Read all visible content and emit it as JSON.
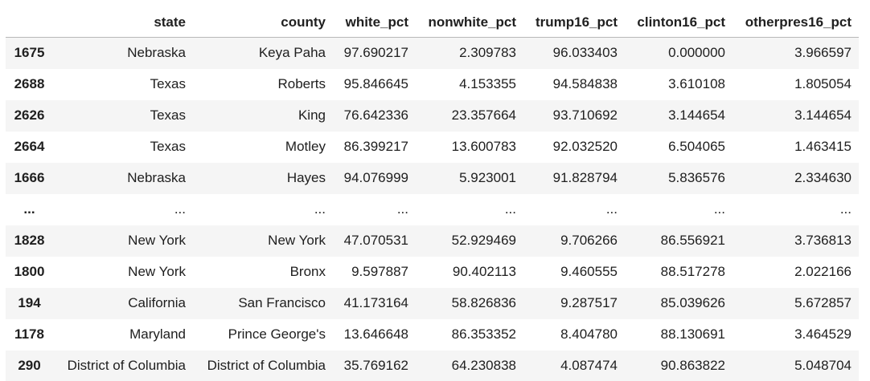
{
  "table": {
    "columns": [
      "",
      "state",
      "county",
      "white_pct",
      "nonwhite_pct",
      "trump16_pct",
      "clinton16_pct",
      "otherpres16_pct"
    ],
    "rows": [
      {
        "index": "1675",
        "cells": [
          "Nebraska",
          "Keya Paha",
          "97.690217",
          "2.309783",
          "96.033403",
          "0.000000",
          "3.966597"
        ]
      },
      {
        "index": "2688",
        "cells": [
          "Texas",
          "Roberts",
          "95.846645",
          "4.153355",
          "94.584838",
          "3.610108",
          "1.805054"
        ]
      },
      {
        "index": "2626",
        "cells": [
          "Texas",
          "King",
          "76.642336",
          "23.357664",
          "93.710692",
          "3.144654",
          "3.144654"
        ]
      },
      {
        "index": "2664",
        "cells": [
          "Texas",
          "Motley",
          "86.399217",
          "13.600783",
          "92.032520",
          "6.504065",
          "1.463415"
        ]
      },
      {
        "index": "1666",
        "cells": [
          "Nebraska",
          "Hayes",
          "94.076999",
          "5.923001",
          "91.828794",
          "5.836576",
          "2.334630"
        ]
      },
      {
        "index": "...",
        "cells": [
          "...",
          "...",
          "...",
          "...",
          "...",
          "...",
          "..."
        ]
      },
      {
        "index": "1828",
        "cells": [
          "New York",
          "New York",
          "47.070531",
          "52.929469",
          "9.706266",
          "86.556921",
          "3.736813"
        ]
      },
      {
        "index": "1800",
        "cells": [
          "New York",
          "Bronx",
          "9.597887",
          "90.402113",
          "9.460555",
          "88.517278",
          "2.022166"
        ]
      },
      {
        "index": "194",
        "cells": [
          "California",
          "San Francisco",
          "41.173164",
          "58.826836",
          "9.287517",
          "85.039626",
          "5.672857"
        ]
      },
      {
        "index": "1178",
        "cells": [
          "Maryland",
          "Prince George's",
          "13.646648",
          "86.353352",
          "8.404780",
          "88.130691",
          "3.464529"
        ]
      },
      {
        "index": "290",
        "cells": [
          "District of Columbia",
          "District of Columbia",
          "35.769162",
          "64.230838",
          "4.087474",
          "90.863822",
          "5.048704"
        ]
      }
    ]
  }
}
